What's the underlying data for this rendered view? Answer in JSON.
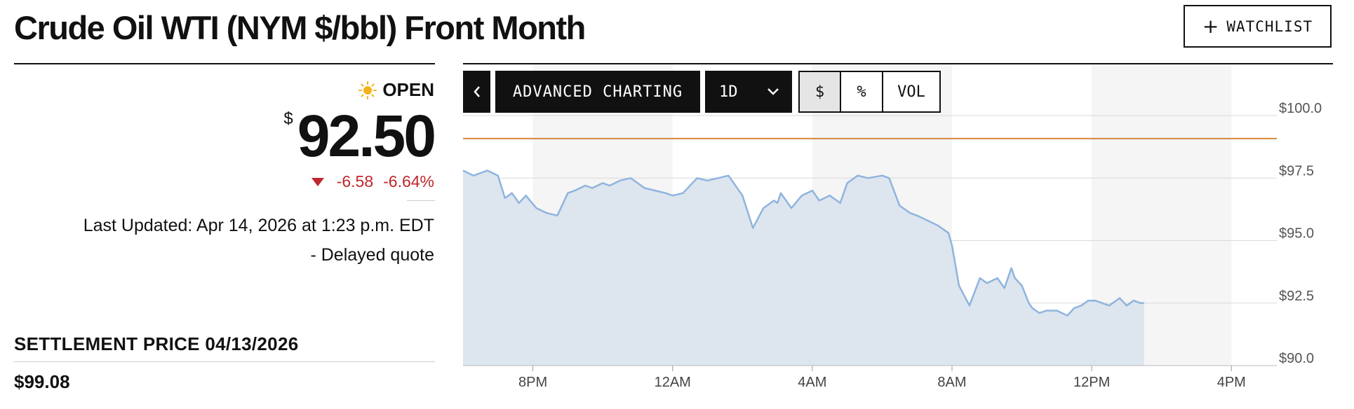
{
  "header": {
    "title": "Crude Oil WTI (NYM $/bbl) Front Month",
    "watchlist_label": "WATCHLIST"
  },
  "quote": {
    "status": "OPEN",
    "currency_symbol": "$",
    "price": "92.50",
    "change": "-6.58",
    "change_pct": "-6.64%",
    "last_updated": "Last Updated: Apr 14, 2026 at 1:23 p.m. EDT",
    "delayed": "-  Delayed quote"
  },
  "settlement": {
    "label": "SETTLEMENT PRICE 04/13/2026",
    "value": "$99.08"
  },
  "toolbar": {
    "back_icon": "chevron-left-icon",
    "advanced_label": "ADVANCED CHARTING",
    "range_label": "1D",
    "dollar_label": "$",
    "percent_label": "%",
    "volume_label": "VOL"
  },
  "colors": {
    "line": "#8fb4de",
    "area": "#dde5ee",
    "reference": "#d4873a",
    "negative": "#c0262d",
    "sun": "#f3b21b"
  },
  "chart_data": {
    "type": "area",
    "y_ticks": [
      "$100.0",
      "$97.5",
      "$95.0",
      "$92.5",
      "$90.0"
    ],
    "y_tick_values": [
      100.0,
      97.5,
      95.0,
      92.5,
      90.0
    ],
    "ylim": [
      90.0,
      100.0
    ],
    "x_ticks": [
      "8PM",
      "12AM",
      "4AM",
      "8AM",
      "12PM",
      "4PM"
    ],
    "x_tick_hours": [
      2,
      6,
      10,
      14,
      18,
      22
    ],
    "xlim_hours": [
      0,
      23.3
    ],
    "reference_line": 99.08,
    "grid": true,
    "series": [
      {
        "x": [
          0,
          0.3,
          0.7,
          1.0,
          1.2,
          1.4,
          1.6,
          1.8,
          2.1,
          2.4,
          2.7,
          3.0,
          3.2,
          3.5,
          3.7,
          4.0,
          4.2,
          4.5,
          4.8,
          5.0,
          5.2,
          5.5,
          5.8,
          6.0,
          6.3,
          6.7,
          7.0,
          7.3,
          7.6,
          8.0,
          8.3,
          8.6,
          8.9,
          9.0,
          9.1,
          9.2,
          9.4,
          9.7,
          10.0,
          10.2,
          10.5,
          10.8,
          11.0,
          11.3,
          11.6,
          12.0,
          12.2,
          12.5,
          12.8,
          13.0,
          13.3,
          13.6,
          13.9,
          14.0,
          14.2,
          14.5,
          14.8,
          15.0,
          15.3,
          15.5,
          15.7,
          15.8,
          16.0,
          16.2,
          16.3,
          16.5,
          16.7,
          17.0,
          17.3,
          17.5,
          17.7,
          17.9,
          18.1,
          18.3,
          18.5,
          18.8,
          19.0,
          19.2,
          19.4,
          19.5
        ],
        "y": [
          97.8,
          97.6,
          97.8,
          97.6,
          96.7,
          96.9,
          96.5,
          96.8,
          96.3,
          96.1,
          96.0,
          96.9,
          97.0,
          97.2,
          97.1,
          97.3,
          97.2,
          97.4,
          97.5,
          97.3,
          97.1,
          97.0,
          96.9,
          96.8,
          96.9,
          97.5,
          97.4,
          97.5,
          97.6,
          96.8,
          95.5,
          96.3,
          96.6,
          96.5,
          96.9,
          96.7,
          96.3,
          96.8,
          97.0,
          96.6,
          96.8,
          96.5,
          97.3,
          97.6,
          97.5,
          97.6,
          97.5,
          96.4,
          96.1,
          96.0,
          95.8,
          95.6,
          95.3,
          94.8,
          93.2,
          92.4,
          93.5,
          93.3,
          93.5,
          93.1,
          93.9,
          93.5,
          93.2,
          92.5,
          92.3,
          92.1,
          92.2,
          92.2,
          92.0,
          92.3,
          92.4,
          92.6,
          92.6,
          92.5,
          92.4,
          92.7,
          92.4,
          92.6,
          92.5,
          92.5
        ]
      }
    ]
  }
}
